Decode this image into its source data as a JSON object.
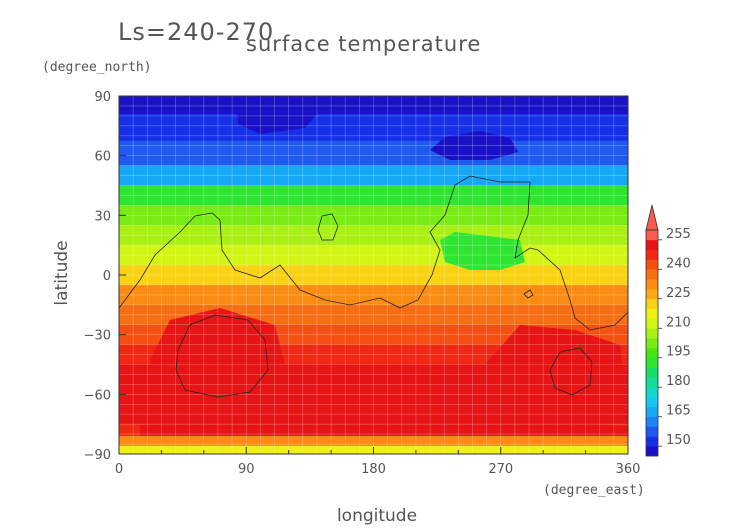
{
  "chart_data": {
    "type": "heatmap",
    "season_label": "Ls=240-270",
    "title": "surface temperature",
    "xlabel": "longitude",
    "ylabel": "latitude",
    "x_unit": "(degree_east)",
    "y_unit": "(degree_north)",
    "xlim": [
      0,
      360
    ],
    "ylim": [
      -90,
      90
    ],
    "x_ticks": [
      0,
      90,
      180,
      270,
      360
    ],
    "y_ticks": [
      90,
      60,
      30,
      0,
      -30,
      -60,
      -90
    ],
    "grid": true,
    "colorbar": {
      "levels": [
        145,
        150,
        155,
        160,
        165,
        170,
        175,
        180,
        185,
        190,
        195,
        200,
        205,
        210,
        215,
        220,
        225,
        230,
        235,
        240,
        245,
        250,
        255,
        260
      ],
      "colors": [
        "#1a10c8",
        "#1530e8",
        "#1e5af0",
        "#1e82f5",
        "#14a8f5",
        "#14c8f0",
        "#14d8c8",
        "#14dc9a",
        "#14dc64",
        "#2ee632",
        "#46e614",
        "#78ec14",
        "#aaf014",
        "#d2f514",
        "#f0f014",
        "#fad214",
        "#faaa14",
        "#fa8c14",
        "#f56e14",
        "#f55014",
        "#f02814",
        "#e61414",
        "#fa5a50"
      ],
      "tick_labels": [
        150,
        165,
        180,
        195,
        210,
        225,
        240,
        255
      ],
      "extend": "max"
    },
    "latitude_profile": [
      {
        "lat": 87,
        "value": 147
      },
      {
        "lat": 75,
        "value": 150
      },
      {
        "lat": 60,
        "value": 157
      },
      {
        "lat": 50,
        "value": 168
      },
      {
        "lat": 40,
        "value": 190
      },
      {
        "lat": 30,
        "value": 203
      },
      {
        "lat": 20,
        "value": 208
      },
      {
        "lat": 10,
        "value": 213
      },
      {
        "lat": 0,
        "value": 224
      },
      {
        "lat": -10,
        "value": 232
      },
      {
        "lat": -20,
        "value": 238
      },
      {
        "lat": -30,
        "value": 243
      },
      {
        "lat": -40,
        "value": 247
      },
      {
        "lat": -50,
        "value": 250
      },
      {
        "lat": -60,
        "value": 251
      },
      {
        "lat": -70,
        "value": 251
      },
      {
        "lat": -80,
        "value": 248
      },
      {
        "lat": -86,
        "value": 228
      },
      {
        "lat": -90,
        "value": 215
      }
    ]
  }
}
